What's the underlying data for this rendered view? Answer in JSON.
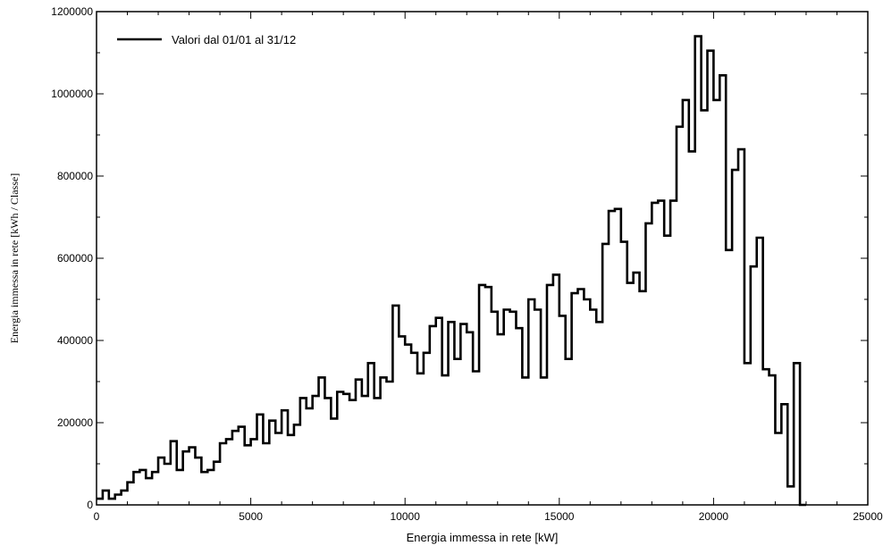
{
  "chart_data": {
    "type": "histogram-step",
    "title": "",
    "xlabel": "Energia immessa in rete [kW]",
    "ylabel": "Energia immessa in rete [kWh / Classe]",
    "xlim": [
      0,
      25000
    ],
    "ylim": [
      0,
      1200000
    ],
    "x_ticks": [
      "0",
      "5000",
      "10000",
      "15000",
      "20000",
      "25000"
    ],
    "y_ticks": [
      "0",
      "200000",
      "400000",
      "600000",
      "800000",
      "1000000",
      "1200000"
    ],
    "grid": false,
    "legend_position": "top-left",
    "bin_width": 200,
    "series": [
      {
        "name": "Valori dal 01/01 al 31/12",
        "color": "#000000",
        "bin_starts": [
          0,
          200,
          400,
          600,
          800,
          1000,
          1200,
          1400,
          1600,
          1800,
          2000,
          2200,
          2400,
          2600,
          2800,
          3000,
          3200,
          3400,
          3600,
          3800,
          4000,
          4200,
          4400,
          4600,
          4800,
          5000,
          5200,
          5400,
          5600,
          5800,
          6000,
          6200,
          6400,
          6600,
          6800,
          7000,
          7200,
          7400,
          7600,
          7800,
          8000,
          8200,
          8400,
          8600,
          8800,
          9000,
          9200,
          9400,
          9600,
          9800,
          10000,
          10200,
          10400,
          10600,
          10800,
          11000,
          11200,
          11400,
          11600,
          11800,
          12000,
          12200,
          12400,
          12600,
          12800,
          13000,
          13200,
          13400,
          13600,
          13800,
          14000,
          14200,
          14400,
          14600,
          14800,
          15000,
          15200,
          15400,
          15600,
          15800,
          16000,
          16200,
          16400,
          16600,
          16800,
          17000,
          17200,
          17400,
          17600,
          17800,
          18000,
          18200,
          18400,
          18600,
          18800,
          19000,
          19200,
          19400,
          19600,
          19800,
          20000,
          20200,
          20400,
          20600,
          20800,
          21000,
          21200,
          21400,
          21600,
          21800,
          22000,
          22200,
          22400,
          22600,
          22800
        ],
        "values": [
          15000,
          35000,
          15000,
          25000,
          35000,
          55000,
          80000,
          85000,
          65000,
          80000,
          115000,
          100000,
          155000,
          85000,
          130000,
          140000,
          115000,
          80000,
          85000,
          105000,
          150000,
          160000,
          180000,
          190000,
          145000,
          160000,
          220000,
          150000,
          205000,
          175000,
          230000,
          170000,
          195000,
          260000,
          235000,
          265000,
          310000,
          260000,
          210000,
          275000,
          270000,
          255000,
          305000,
          265000,
          345000,
          260000,
          310000,
          300000,
          485000,
          410000,
          390000,
          370000,
          320000,
          370000,
          435000,
          455000,
          315000,
          445000,
          355000,
          440000,
          420000,
          325000,
          535000,
          530000,
          470000,
          415000,
          475000,
          470000,
          430000,
          310000,
          500000,
          475000,
          310000,
          535000,
          560000,
          460000,
          355000,
          515000,
          525000,
          500000,
          475000,
          445000,
          635000,
          715000,
          720000,
          640000,
          540000,
          565000,
          520000,
          685000,
          735000,
          740000,
          655000,
          740000,
          920000,
          985000,
          860000,
          1140000,
          960000,
          1105000,
          985000,
          1045000,
          620000,
          815000,
          865000,
          345000,
          580000,
          650000,
          330000,
          315000,
          175000,
          245000,
          45000,
          345000,
          0
        ]
      }
    ]
  }
}
